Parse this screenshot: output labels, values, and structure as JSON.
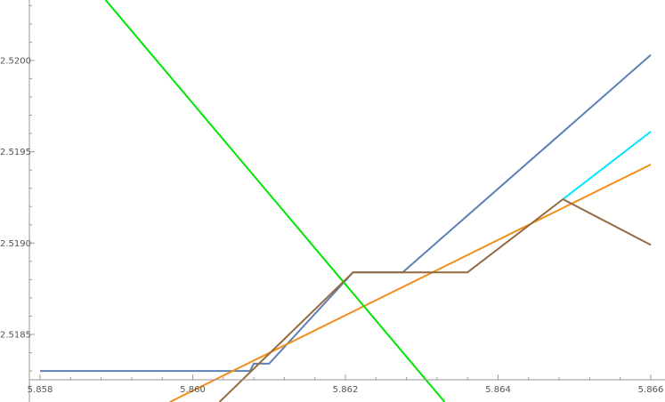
{
  "chart_data": {
    "type": "line",
    "title": "",
    "xlabel": "",
    "ylabel": "",
    "xlim": [
      5.858,
      5.866
    ],
    "ylim": [
      2.51813,
      2.52036
    ],
    "x_ticks": [
      5.858,
      5.86,
      5.862,
      5.864,
      5.866
    ],
    "x_tick_labels": [
      "5.858",
      "5.860",
      "5.862",
      "5.864",
      "5.866"
    ],
    "y_ticks": [
      2.5185,
      2.519,
      2.5195,
      2.52
    ],
    "y_tick_labels": [
      "2.5185",
      "2.5190",
      "2.5195",
      "2.5200"
    ],
    "grid": false,
    "series": [
      {
        "color": "#5e81b5",
        "points": [
          [
            5.858,
            2.5183
          ],
          [
            5.86075,
            2.5183
          ],
          [
            5.8608,
            2.51834
          ],
          [
            5.861,
            2.51834
          ],
          [
            5.8621,
            2.51884
          ],
          [
            5.86275,
            2.51884
          ],
          [
            5.866,
            2.52003
          ]
        ]
      },
      {
        "color": "#00e5ff",
        "points": [
          [
            5.86485,
            2.51924
          ],
          [
            5.866,
            2.51961
          ]
        ]
      },
      {
        "color": "#f28e1c",
        "points": [
          [
            5.8597,
            2.51813
          ],
          [
            5.866,
            2.51943
          ]
        ]
      },
      {
        "color": "#00e600",
        "points": [
          [
            5.8588,
            2.52036
          ],
          [
            5.8633,
            2.51813
          ]
        ]
      },
      {
        "color": "#946b3e",
        "points": [
          [
            5.86035,
            2.51813
          ],
          [
            5.8621,
            2.51884
          ],
          [
            5.8636,
            2.51884
          ],
          [
            5.86485,
            2.51924
          ],
          [
            5.866,
            2.51899
          ]
        ]
      }
    ]
  }
}
